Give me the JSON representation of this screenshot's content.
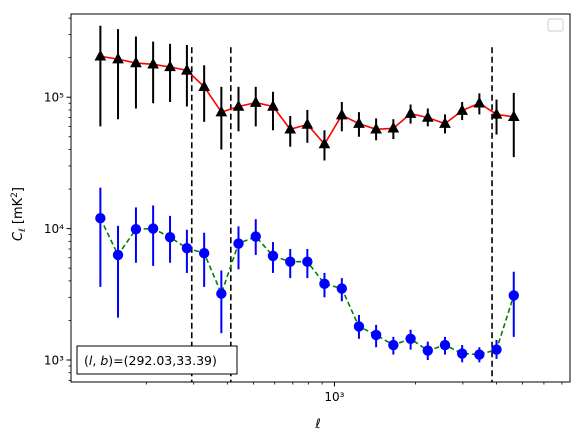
{
  "chart_data": {
    "type": "line",
    "xlabel": "ℓ",
    "ylabel": "C_ℓ [mK²]",
    "xscale": "log",
    "yscale": "log",
    "xlim": [
      105,
      7500
    ],
    "ylim": [
      680,
      430000
    ],
    "x_tick_labels": [
      {
        "value": 1000,
        "label": "10³"
      }
    ],
    "y_tick_labels": [
      {
        "value": 1000,
        "label": "10³"
      },
      {
        "value": 10000,
        "label": "10⁴"
      },
      {
        "value": 100000,
        "label": "10⁵"
      }
    ],
    "vertical_lines": [
      295,
      412,
      3850
    ],
    "annotation": "(l, b)=(292.03,33.39)",
    "annotation_parts": {
      "prefix": "(",
      "l": "l",
      "comma": ", ",
      "b": "b",
      "suffix": ")=(292.03,33.39)"
    },
    "legend": {
      "placement": "upper right",
      "entries": []
    },
    "grid": false,
    "series": [
      {
        "line_color": "#ff0000",
        "marker_color": "#000000",
        "marker": "triangle",
        "line_style": "solid",
        "x": [
          135,
          157,
          183,
          212,
          245,
          283,
          328,
          380,
          440,
          510,
          591,
          685,
          793,
          918,
          1065,
          1233,
          1428,
          1655,
          1918,
          2222,
          2574,
          2981,
          3454,
          4000,
          4636
        ],
        "y": [
          205000,
          195000,
          182000,
          178000,
          170000,
          160000,
          120000,
          77000,
          85000,
          91000,
          85000,
          57000,
          62000,
          44000,
          73000,
          63000,
          57000,
          58000,
          75000,
          70000,
          63000,
          79000,
          90000,
          74000,
          71000
        ],
        "y_low": [
          60000,
          68000,
          82000,
          90000,
          92000,
          85000,
          65000,
          40000,
          55000,
          60000,
          56000,
          42000,
          45000,
          33000,
          55000,
          50000,
          47000,
          48000,
          63000,
          60000,
          53000,
          67000,
          74000,
          52000,
          35000
        ],
        "y_high": [
          350000,
          330000,
          290000,
          265000,
          255000,
          250000,
          175000,
          120000,
          120000,
          120000,
          110000,
          72000,
          80000,
          56000,
          92000,
          77000,
          69000,
          68000,
          88000,
          82000,
          74000,
          92000,
          107000,
          96000,
          108000
        ]
      },
      {
        "line_color": "#008000",
        "marker_color": "#0000ff",
        "marker": "circle",
        "line_style": "dashed",
        "x": [
          135,
          157,
          183,
          212,
          245,
          283,
          328,
          380,
          440,
          510,
          591,
          685,
          793,
          918,
          1065,
          1233,
          1428,
          1655,
          1918,
          2222,
          2574,
          2981,
          3454,
          4000,
          4636
        ],
        "y": [
          12000,
          6300,
          9900,
          10000,
          8600,
          7100,
          6500,
          3200,
          7700,
          8700,
          6200,
          5600,
          5600,
          3800,
          3500,
          1800,
          1550,
          1300,
          1450,
          1180,
          1300,
          1120,
          1100,
          1200,
          3100
        ],
        "y_low": [
          3600,
          2100,
          5500,
          5200,
          5500,
          4600,
          3600,
          1600,
          4900,
          6300,
          4600,
          4200,
          4200,
          3000,
          2800,
          1450,
          1250,
          1100,
          1200,
          1000,
          1100,
          960,
          960,
          1020,
          1500
        ],
        "y_high": [
          20500,
          10500,
          14500,
          15000,
          12500,
          9800,
          9300,
          4800,
          10400,
          11800,
          7900,
          7000,
          7000,
          4600,
          4200,
          2200,
          1850,
          1500,
          1700,
          1380,
          1500,
          1300,
          1250,
          1420,
          4700
        ]
      }
    ]
  }
}
